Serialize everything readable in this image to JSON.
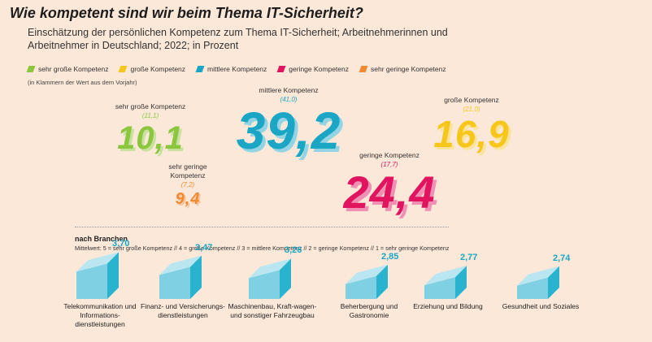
{
  "title": "Wie kompetent sind wir beim Thema IT-Sicherheit?",
  "subtitle": "Einschätzung der persönlichen Kompetenz zum Thema IT-Sicherheit; Arbeitnehmerinnen und Arbeitnehmer in Deutschland; 2022; in Prozent",
  "legend": [
    {
      "label": "sehr große Kompetenz",
      "color": "#8cc63f"
    },
    {
      "label": "große Kompetenz",
      "color": "#f7c61b"
    },
    {
      "label": "mittlere Kompetenz",
      "color": "#1aa6c4"
    },
    {
      "label": "geringe Kompetenz",
      "color": "#e0145f"
    },
    {
      "label": "sehr geringe Kompetenz",
      "color": "#f08a30"
    }
  ],
  "note": "(in Klammern der Wert aus dem Vorjahr)",
  "section_title": "nach Branchen",
  "scale_note": "Mittelwert: 5 = sehr große Kompetenz // 4 = große Kompetenz // 3 = mittlere Kompetenz // 2 = geringe Kompetenz // 1 = sehr geringe Kompetenz",
  "chart_data": [
    {
      "type": "bar",
      "categories": [
        "sehr große Kompetenz",
        "große Kompetenz",
        "mittlere Kompetenz",
        "geringe Kompetenz",
        "sehr geringe Kompetenz"
      ],
      "series": [
        {
          "values": [
            10.1,
            16.9,
            39.2,
            24.4,
            9.4
          ],
          "value_labels": [
            "10,1",
            "16,9",
            "39,2",
            "24,4",
            "9,4"
          ]
        },
        {
          "values": [
            11.1,
            21.0,
            41.0,
            17.7,
            7.2
          ],
          "value_labels": [
            "(11,1)",
            "(21,0)",
            "(41,0)",
            "(17,7)",
            "(7,2)"
          ]
        }
      ]
    },
    {
      "type": "bar",
      "categories": [
        "Telekommunikation und Informationsdienstleistungen",
        "Finanz- und Versicherungsdienstleistungen",
        "Maschinenbau, Kraftwagen- und sonstiger Fahrzeugbau",
        "Beherbergung und Gastronomie",
        "Erziehung und Bildung",
        "Gesundheit und Soziales"
      ],
      "values": [
        3.7,
        3.47,
        3.26,
        2.85,
        2.77,
        2.74
      ],
      "value_labels": [
        "3,70",
        "3,47",
        "3,26",
        "2,85",
        "2,77",
        "2,74"
      ]
    }
  ],
  "kpis": [
    {
      "label": "sehr große Kompetenz",
      "prev": "(11,1)",
      "value": "10,1",
      "color": "#8cc63f"
    },
    {
      "label": "mittlere Kompetenz",
      "prev": "(41,0)",
      "value": "39,2",
      "color": "#1aa6c4"
    },
    {
      "label": "große Kompetenz",
      "prev": "(21,0)",
      "value": "16,9",
      "color": "#f7c61b"
    },
    {
      "label": "sehr geringe Kompetenz",
      "prev": "(7,2)",
      "value": "9,4",
      "color": "#f08a30"
    },
    {
      "label": "geringe Kompetenz",
      "prev": "(17,7)",
      "value": "24,4",
      "color": "#e0145f"
    }
  ],
  "branches": [
    {
      "name": "Telekommunikation und Informations-dienstleistungen",
      "value": "3,70"
    },
    {
      "name": "Finanz- und Versicherungs-dienstleistungen",
      "value": "3,47"
    },
    {
      "name": "Maschinenbau, Kraft-wagen- und sonstiger Fahrzeugbau",
      "value": "3,26"
    },
    {
      "name": "Beherbergung und Gastronomie",
      "value": "2,85"
    },
    {
      "name": "Erziehung und Bildung",
      "value": "2,77"
    },
    {
      "name": "Gesundheit und Soziales",
      "value": "2,74"
    }
  ]
}
